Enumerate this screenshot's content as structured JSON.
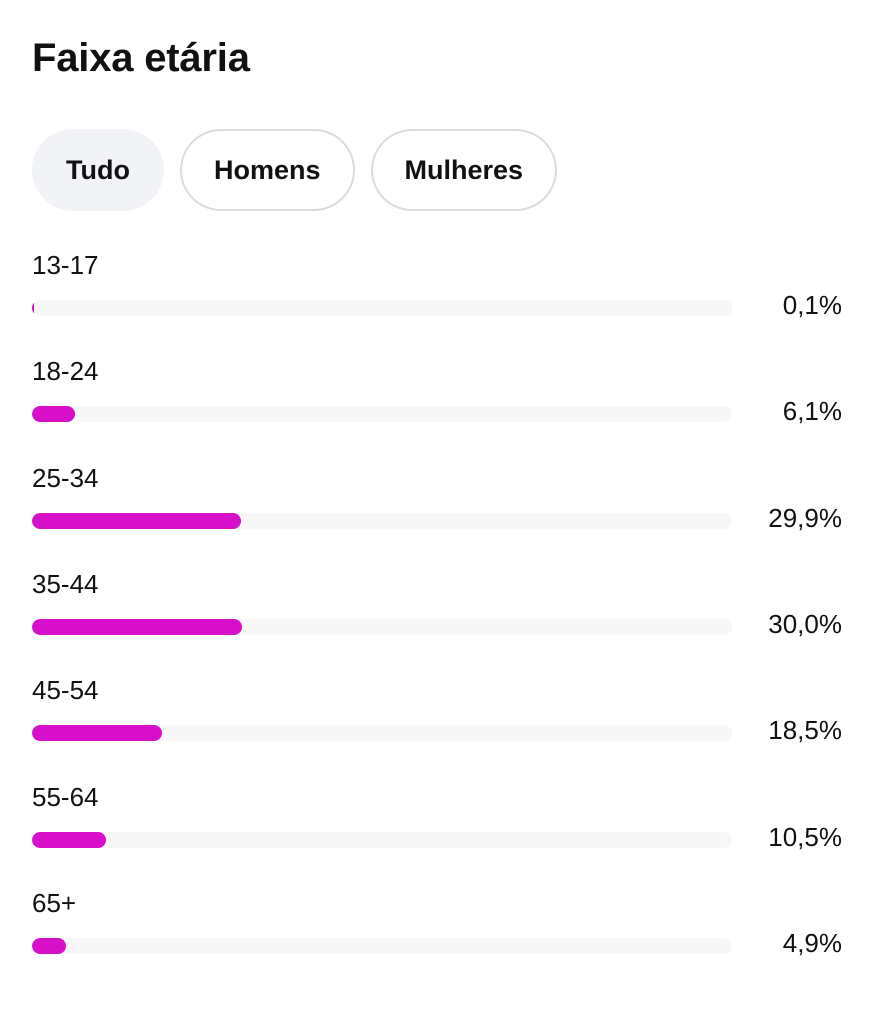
{
  "header": {
    "title": "Faixa etária"
  },
  "filters": [
    {
      "label": "Tudo",
      "active": true
    },
    {
      "label": "Homens",
      "active": false
    },
    {
      "label": "Mulheres",
      "active": false
    }
  ],
  "colors": {
    "bar_fill": "#d80fc9",
    "bar_track": "#f7f7f8",
    "active_pill": "#f2f3f6",
    "pill_border": "#dcdcdc"
  },
  "chart_data": {
    "type": "bar",
    "orientation": "horizontal",
    "categories": [
      "13-17",
      "18-24",
      "25-34",
      "35-44",
      "45-54",
      "55-64",
      "65+"
    ],
    "values": [
      0.1,
      6.1,
      29.9,
      30.0,
      18.5,
      10.5,
      4.9
    ],
    "value_labels": [
      "0,1%",
      "6,1%",
      "29,9%",
      "30,0%",
      "18,5%",
      "10,5%",
      "4,9%"
    ],
    "xlim": [
      0,
      100
    ],
    "grid": false
  }
}
